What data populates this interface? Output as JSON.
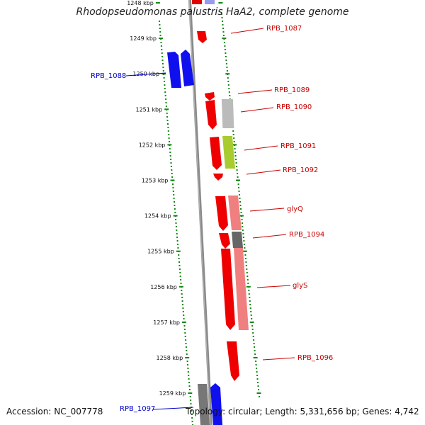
{
  "title": "Rhodopseudomonas palustris HaA2, complete genome",
  "accession": "Accession: NC_007778",
  "topology": "Topology: circular; Length: 5,331,656 bp; Genes: 4,742",
  "colors": {
    "forward_label": "#cc0000",
    "reverse_label": "#0000cc",
    "grid_dots": "#118811",
    "backbone": "#888888"
  },
  "ticks": [
    {
      "kbp": 1248,
      "label": "1248 kbp"
    },
    {
      "kbp": 1249,
      "label": "1249 kbp"
    },
    {
      "kbp": 1250,
      "label": "1250 kbp"
    },
    {
      "kbp": 1251,
      "label": "1251 kbp"
    },
    {
      "kbp": 1252,
      "label": "1252 kbp"
    },
    {
      "kbp": 1253,
      "label": "1253 kbp"
    },
    {
      "kbp": 1254,
      "label": "1254 kbp"
    },
    {
      "kbp": 1255,
      "label": "1255 kbp"
    },
    {
      "kbp": 1256,
      "label": "1256 kbp"
    },
    {
      "kbp": 1257,
      "label": "1257 kbp"
    },
    {
      "kbp": 1258,
      "label": "1258 kbp"
    },
    {
      "kbp": 1259,
      "label": "1259 kbp"
    }
  ],
  "genes": [
    {
      "label": "RPB_1087",
      "strand": "+"
    },
    {
      "label": "RPB_1088",
      "strand": "-"
    },
    {
      "label": "RPB_1089",
      "strand": "+"
    },
    {
      "label": "RPB_1090",
      "strand": "+"
    },
    {
      "label": "RPB_1091",
      "strand": "+"
    },
    {
      "label": "RPB_1092",
      "strand": "+"
    },
    {
      "label": "glyQ",
      "strand": "+"
    },
    {
      "label": "RPB_1094",
      "strand": "+"
    },
    {
      "label": "glyS",
      "strand": "+"
    },
    {
      "label": "RPB_1096",
      "strand": "+"
    },
    {
      "label": "RPB_1097",
      "strand": "-"
    }
  ]
}
